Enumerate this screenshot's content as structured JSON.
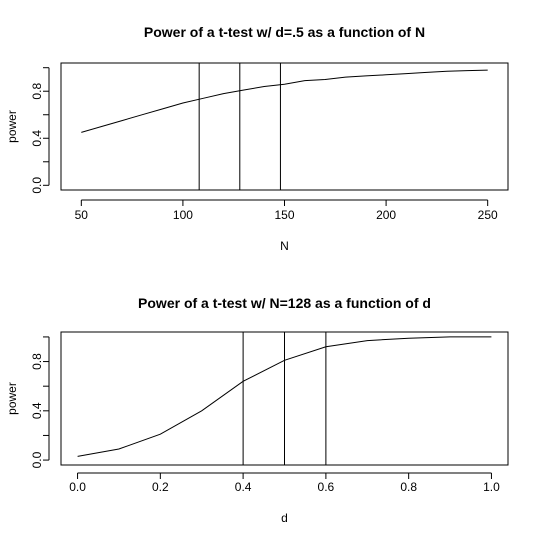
{
  "chart_data": [
    {
      "type": "line",
      "title": "Power of a t-test w/ d=.5 as a function of N",
      "xlabel": "N",
      "ylabel": "power",
      "xlim": [
        40,
        260
      ],
      "ylim": [
        -0.04,
        1.04
      ],
      "xticks": [
        50,
        100,
        150,
        200,
        250
      ],
      "xtick_labels": [
        "50",
        "100",
        "150",
        "200",
        "250"
      ],
      "yticks": [
        0,
        0.2,
        0.4,
        0.6,
        0.8,
        1.0
      ],
      "ytick_labels": [
        "0.0",
        "",
        "0.4",
        "",
        "0.8",
        ""
      ],
      "grid": false,
      "x": [
        50,
        60,
        70,
        80,
        90,
        100,
        110,
        120,
        130,
        140,
        150,
        160,
        170,
        180,
        190,
        200,
        210,
        220,
        230,
        240,
        250
      ],
      "y": [
        0.45,
        0.5,
        0.55,
        0.6,
        0.65,
        0.7,
        0.74,
        0.78,
        0.81,
        0.84,
        0.86,
        0.89,
        0.9,
        0.92,
        0.93,
        0.94,
        0.95,
        0.96,
        0.97,
        0.975,
        0.98
      ],
      "vlines": [
        108,
        128,
        148
      ]
    },
    {
      "type": "line",
      "title": "Power of a t-test w/ N=128 as a function of d",
      "xlabel": "d",
      "ylabel": "power",
      "xlim": [
        -0.04,
        1.04
      ],
      "ylim": [
        -0.04,
        1.04
      ],
      "xticks": [
        0,
        0.2,
        0.4,
        0.6,
        0.8,
        1.0
      ],
      "xtick_labels": [
        "0.0",
        "0.2",
        "0.4",
        "0.6",
        "0.8",
        "1.0"
      ],
      "yticks": [
        0,
        0.2,
        0.4,
        0.6,
        0.8,
        1.0
      ],
      "ytick_labels": [
        "0.0",
        "",
        "0.4",
        "",
        "0.8",
        ""
      ],
      "grid": false,
      "x": [
        0.0,
        0.1,
        0.2,
        0.3,
        0.4,
        0.5,
        0.6,
        0.7,
        0.8,
        0.9,
        1.0
      ],
      "y": [
        0.03,
        0.09,
        0.21,
        0.4,
        0.64,
        0.81,
        0.92,
        0.97,
        0.99,
        1.0,
        1.0
      ],
      "vlines": [
        0.4,
        0.5,
        0.6
      ]
    }
  ]
}
